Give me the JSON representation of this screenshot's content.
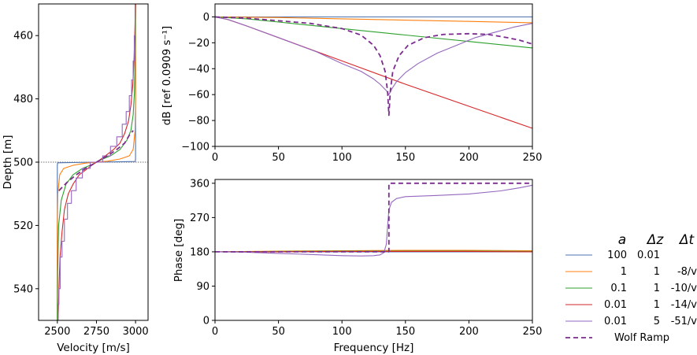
{
  "chart_data": [
    {
      "type": "line",
      "panel": "velocity-profile",
      "xlabel": "Velocity [m/s]",
      "ylabel": "Depth [m]",
      "xlim": [
        2380,
        3080
      ],
      "ylim": [
        550,
        450
      ],
      "xticks": [
        2500,
        2750,
        3000
      ],
      "yticks": [
        460,
        480,
        500,
        520,
        540
      ],
      "reference_depth": 500,
      "series": [
        {
          "name_ref": 0,
          "color": "#4c72b0",
          "points": [
            [
              2500,
              550
            ],
            [
              2500,
              512
            ],
            [
              2500,
              505
            ],
            [
              2500,
              501
            ],
            [
              2502,
              500.2
            ],
            [
              2750,
              500
            ],
            [
              2998,
              499.8
            ],
            [
              3000,
              499
            ],
            [
              3000,
              495
            ],
            [
              3000,
              488
            ],
            [
              3000,
              450
            ]
          ]
        },
        {
          "name_ref": 1,
          "color": "#ff7f0e",
          "points": [
            [
              2500,
              550
            ],
            [
              2500,
              520
            ],
            [
              2503,
              510
            ],
            [
              2515,
              504
            ],
            [
              2540,
              502
            ],
            [
              2600,
              501
            ],
            [
              2680,
              500.3
            ],
            [
              2750,
              500
            ],
            [
              2820,
              499.7
            ],
            [
              2900,
              499
            ],
            [
              2960,
              498
            ],
            [
              2985,
              496
            ],
            [
              2997,
              490
            ],
            [
              3000,
              480
            ],
            [
              3000,
              450
            ]
          ]
        },
        {
          "name_ref": 2,
          "color": "#2ca02c",
          "points": [
            [
              2500,
              550
            ],
            [
              2502,
              535
            ],
            [
              2508,
              520
            ],
            [
              2525,
              512
            ],
            [
              2555,
              507
            ],
            [
              2600,
              504
            ],
            [
              2660,
              502
            ],
            [
              2710,
              501
            ],
            [
              2750,
              500
            ],
            [
              2790,
              499
            ],
            [
              2840,
              498
            ],
            [
              2900,
              496
            ],
            [
              2945,
              493
            ],
            [
              2970,
              490
            ],
            [
              2985,
              485
            ],
            [
              2993,
              478
            ],
            [
              2998,
              465
            ],
            [
              3000,
              450
            ]
          ]
        },
        {
          "name_ref": 3,
          "color": "#d62728",
          "points": [
            [
              2505,
              550
            ],
            [
              2510,
              540
            ],
            [
              2517,
              530
            ],
            [
              2530,
              522
            ],
            [
              2545,
              515
            ],
            [
              2570,
              510
            ],
            [
              2600,
              507
            ],
            [
              2640,
              504
            ],
            [
              2680,
              502.5
            ],
            [
              2720,
              501
            ],
            [
              2750,
              500
            ],
            [
              2780,
              499
            ],
            [
              2820,
              497.5
            ],
            [
              2860,
              496
            ],
            [
              2900,
              494
            ],
            [
              2930,
              491
            ],
            [
              2955,
              487
            ],
            [
              2970,
              482
            ],
            [
              2982,
              476
            ],
            [
              2990,
              468
            ],
            [
              2996,
              458
            ],
            [
              3000,
              450
            ]
          ]
        },
        {
          "name_ref": 4,
          "color": "#9467bd",
          "stepped": true,
          "points": [
            [
              2505,
              550
            ],
            [
              2505,
              545
            ],
            [
              2510,
              545
            ],
            [
              2510,
              540
            ],
            [
              2518,
              540
            ],
            [
              2518,
              530
            ],
            [
              2530,
              530
            ],
            [
              2530,
              525
            ],
            [
              2545,
              525
            ],
            [
              2545,
              518
            ],
            [
              2565,
              518
            ],
            [
              2565,
              513
            ],
            [
              2590,
              513
            ],
            [
              2590,
              509
            ],
            [
              2620,
              509
            ],
            [
              2620,
              505
            ],
            [
              2660,
              505
            ],
            [
              2660,
              502
            ],
            [
              2710,
              502
            ],
            [
              2710,
              500
            ],
            [
              2790,
              500
            ],
            [
              2790,
              498
            ],
            [
              2840,
              498
            ],
            [
              2840,
              495
            ],
            [
              2880,
              495
            ],
            [
              2880,
              492
            ],
            [
              2915,
              492
            ],
            [
              2915,
              488
            ],
            [
              2940,
              488
            ],
            [
              2940,
              484
            ],
            [
              2960,
              484
            ],
            [
              2960,
              479
            ],
            [
              2975,
              479
            ],
            [
              2975,
              474
            ],
            [
              2985,
              474
            ],
            [
              2985,
              468
            ],
            [
              2992,
              468
            ],
            [
              2992,
              460
            ],
            [
              2997,
              460
            ],
            [
              2997,
              450
            ]
          ]
        },
        {
          "name_ref": 5,
          "color": "#7b2d8e",
          "dashed": true,
          "points": [
            [
              2510,
              509
            ],
            [
              2560,
              506.5
            ],
            [
              2620,
              504
            ],
            [
              2680,
              502
            ],
            [
              2750,
              500
            ],
            [
              2820,
              498
            ],
            [
              2880,
              496
            ],
            [
              2930,
              494
            ],
            [
              2960,
              491.5
            ],
            [
              2985,
              490
            ]
          ]
        }
      ]
    },
    {
      "type": "line",
      "panel": "magnitude",
      "xlabel": "",
      "ylabel": "dB [ref 0.0909 s⁻¹]",
      "xlim": [
        0,
        250
      ],
      "ylim": [
        -100,
        10
      ],
      "xticks": [
        0,
        50,
        100,
        150,
        200,
        250
      ],
      "yticks": [
        0,
        -20,
        -40,
        -60,
        -80,
        -100
      ],
      "series": [
        {
          "name_ref": 0,
          "color": "#4c72b0",
          "points": [
            [
              0,
              0
            ],
            [
              250,
              0
            ]
          ]
        },
        {
          "name_ref": 1,
          "color": "#ff7f0e",
          "points": [
            [
              0,
              0
            ],
            [
              50,
              -0.5
            ],
            [
              100,
              -1.5
            ],
            [
              150,
              -2.5
            ],
            [
              200,
              -3.5
            ],
            [
              250,
              -4.5
            ]
          ]
        },
        {
          "name_ref": 2,
          "color": "#2ca02c",
          "points": [
            [
              0,
              0
            ],
            [
              25,
              -1.5
            ],
            [
              50,
              -4
            ],
            [
              100,
              -9
            ],
            [
              150,
              -14
            ],
            [
              200,
              -19
            ],
            [
              250,
              -24
            ]
          ]
        },
        {
          "name_ref": 3,
          "color": "#d62728",
          "points": [
            [
              0,
              0
            ],
            [
              10,
              -2
            ],
            [
              25,
              -7
            ],
            [
              50,
              -16
            ],
            [
              100,
              -34
            ],
            [
              150,
              -52
            ],
            [
              200,
              -69
            ],
            [
              250,
              -86
            ]
          ]
        },
        {
          "name_ref": 4,
          "color": "#9467bd",
          "points": [
            [
              0,
              0
            ],
            [
              10,
              -2
            ],
            [
              25,
              -7
            ],
            [
              50,
              -16
            ],
            [
              80,
              -27
            ],
            [
              100,
              -36
            ],
            [
              115,
              -42
            ],
            [
              125,
              -48
            ],
            [
              130,
              -52
            ],
            [
              135,
              -57
            ],
            [
              137,
              -60
            ],
            [
              139,
              -56
            ],
            [
              143,
              -50
            ],
            [
              150,
              -43
            ],
            [
              160,
              -36
            ],
            [
              175,
              -28
            ],
            [
              190,
              -22
            ],
            [
              205,
              -16
            ],
            [
              220,
              -12
            ],
            [
              235,
              -8
            ],
            [
              250,
              -5
            ]
          ]
        },
        {
          "name_ref": 5,
          "color": "#7b2d8e",
          "dashed": true,
          "points": [
            [
              0,
              0
            ],
            [
              25,
              -1
            ],
            [
              50,
              -3
            ],
            [
              75,
              -5
            ],
            [
              100,
              -9
            ],
            [
              115,
              -14
            ],
            [
              125,
              -22
            ],
            [
              130,
              -30
            ],
            [
              134,
              -42
            ],
            [
              136,
              -58
            ],
            [
              137,
              -76
            ],
            [
              138,
              -58
            ],
            [
              140,
              -42
            ],
            [
              145,
              -30
            ],
            [
              152,
              -22
            ],
            [
              165,
              -16
            ],
            [
              180,
              -13.5
            ],
            [
              200,
              -13
            ],
            [
              215,
              -13.5
            ],
            [
              230,
              -16
            ],
            [
              240,
              -18
            ],
            [
              250,
              -21
            ]
          ]
        }
      ]
    },
    {
      "type": "line",
      "panel": "phase",
      "xlabel": "Frequency [Hz]",
      "ylabel": "Phase [deg]",
      "xlim": [
        0,
        250
      ],
      "ylim": [
        0,
        370
      ],
      "xticks": [
        0,
        50,
        100,
        150,
        200,
        250
      ],
      "yticks": [
        0,
        90,
        180,
        270,
        360
      ],
      "series": [
        {
          "name_ref": 0,
          "color": "#4c72b0",
          "points": [
            [
              0,
              180
            ],
            [
              250,
              180
            ]
          ]
        },
        {
          "name_ref": 1,
          "color": "#ff7f0e",
          "points": [
            [
              0,
              180
            ],
            [
              50,
              182
            ],
            [
              100,
              183
            ],
            [
              150,
              184
            ],
            [
              200,
              184
            ],
            [
              250,
              183
            ]
          ]
        },
        {
          "name_ref": 2,
          "color": "#2ca02c",
          "points": [
            [
              0,
              180
            ],
            [
              50,
              181
            ],
            [
              100,
              182
            ],
            [
              150,
              182
            ],
            [
              200,
              182
            ],
            [
              250,
              181
            ]
          ]
        },
        {
          "name_ref": 3,
          "color": "#d62728",
          "points": [
            [
              0,
              180
            ],
            [
              50,
              180
            ],
            [
              100,
              181
            ],
            [
              150,
              181
            ],
            [
              200,
              181
            ],
            [
              250,
              180
            ]
          ]
        },
        {
          "name_ref": 4,
          "color": "#9467bd",
          "points": [
            [
              0,
              180
            ],
            [
              25,
              179
            ],
            [
              50,
              176
            ],
            [
              75,
              173
            ],
            [
              100,
              170
            ],
            [
              115,
              169
            ],
            [
              125,
              170
            ],
            [
              130,
              172
            ],
            [
              133,
              178
            ],
            [
              135,
              200
            ],
            [
              136,
              250
            ],
            [
              137,
              290
            ],
            [
              139,
              310
            ],
            [
              143,
              320
            ],
            [
              150,
              325
            ],
            [
              175,
              328
            ],
            [
              200,
              332
            ],
            [
              225,
              340
            ],
            [
              240,
              348
            ],
            [
              250,
              355
            ]
          ]
        },
        {
          "name_ref": 5,
          "color": "#7b2d8e",
          "dashed": true,
          "points": [
            [
              0,
              180
            ],
            [
              50,
              180
            ],
            [
              100,
              180
            ],
            [
              136,
              180
            ],
            [
              137,
              180
            ],
            [
              137,
              360
            ],
            [
              250,
              360
            ]
          ]
        }
      ]
    }
  ],
  "legend": {
    "headers": {
      "a": "a",
      "dz": "Δz",
      "dt": "Δt"
    },
    "entries": [
      {
        "color": "#4c72b0",
        "a": "100",
        "dz": "0.01",
        "dt": "",
        "dashed": false
      },
      {
        "color": "#ff7f0e",
        "a": "1",
        "dz": "1",
        "dt": "-8/v",
        "dashed": false
      },
      {
        "color": "#2ca02c",
        "a": "0.1",
        "dz": "1",
        "dt": "-10/v",
        "dashed": false
      },
      {
        "color": "#d62728",
        "a": "0.01",
        "dz": "1",
        "dt": "-14/v",
        "dashed": false
      },
      {
        "color": "#9467bd",
        "a": "0.01",
        "dz": "5",
        "dt": "-51/v",
        "dashed": false
      },
      {
        "color": "#7b2d8e",
        "a": "Wolf Ramp",
        "dz": "",
        "dt": "",
        "dashed": true
      }
    ]
  }
}
